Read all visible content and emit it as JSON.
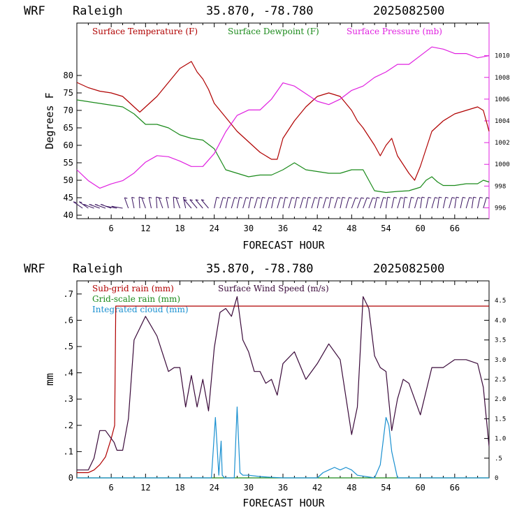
{
  "panels": [
    {
      "title": {
        "model": "WRF",
        "place": "Raleigh",
        "coords": "35.870, -78.780",
        "date": "2025082500"
      },
      "legend": [
        "Surface Temperature (F)",
        "Surface Dewpoint (F)",
        "Surface Pressure (mb)"
      ],
      "xlabel": "FORECAST HOUR",
      "ylabel": "Degrees F"
    },
    {
      "title": {
        "model": "WRF",
        "place": "Raleigh",
        "coords": "35.870, -78.780",
        "date": "2025082500"
      },
      "legend": [
        "Sub-grid rain (mm)",
        "Surface Wind Speed (m/s)",
        "Grid-scale rain (mm)",
        "Integrated cloud (mm)"
      ],
      "xlabel": "FORECAST HOUR",
      "ylabel": "mm"
    }
  ],
  "colors": {
    "temperature": "#b00000",
    "dewpoint": "#1a8a1a",
    "pressure": "#e020e0",
    "subgrid": "#b00000",
    "wind": "#3a0a3a",
    "cloud": "#1a90d0",
    "barbs": "#3a1460",
    "axis": "#000000"
  },
  "chart_data": [
    {
      "type": "line",
      "xlim": [
        0,
        72
      ],
      "ylim": [
        39,
        95
      ],
      "y2lim": [
        995,
        1013
      ],
      "x_ticks": [
        "6",
        "12",
        "18",
        "24",
        "30",
        "36",
        "42",
        "48",
        "54",
        "60",
        "66"
      ],
      "y_ticks": [
        "40",
        "45",
        "50",
        "55",
        "60",
        "65",
        "70",
        "75",
        "80"
      ],
      "y2_ticks": [
        "996",
        "998",
        "1000",
        "1002",
        "1004",
        "1006",
        "1008",
        "1010"
      ],
      "wind_barbs": true,
      "series": [
        {
          "name": "Surface Temperature (F)",
          "axis": "left",
          "x": [
            0,
            2,
            4,
            6,
            8,
            10,
            11,
            12,
            14,
            16,
            18,
            19,
            20,
            21,
            22,
            23,
            24,
            26,
            28,
            30,
            32,
            34,
            35,
            36,
            38,
            40,
            42,
            44,
            46,
            48,
            49,
            50,
            52,
            53,
            54,
            55,
            56,
            58,
            59,
            60,
            62,
            64,
            66,
            68,
            70,
            71,
            72
          ],
          "y": [
            78,
            76.5,
            75.5,
            75,
            74,
            71,
            69.5,
            71,
            74,
            78,
            82,
            83,
            84,
            81,
            79,
            76,
            72,
            68,
            64,
            61,
            58,
            56,
            56,
            62,
            67,
            71,
            74,
            75,
            74,
            70,
            67,
            65,
            60,
            57,
            60,
            62,
            57,
            52,
            50,
            54,
            64,
            67,
            69,
            70,
            71,
            70,
            64
          ]
        },
        {
          "name": "Surface Dewpoint (F)",
          "axis": "left",
          "x": [
            0,
            2,
            4,
            6,
            8,
            10,
            12,
            14,
            16,
            18,
            20,
            22,
            24,
            26,
            28,
            30,
            32,
            34,
            36,
            38,
            40,
            42,
            44,
            46,
            48,
            50,
            51,
            52,
            54,
            56,
            58,
            60,
            61,
            62,
            63,
            64,
            66,
            68,
            70,
            71,
            72
          ],
          "y": [
            73,
            72.5,
            72,
            71.5,
            71,
            69,
            66,
            66,
            65,
            63,
            62,
            61.5,
            59,
            53,
            52,
            51,
            51.5,
            51.5,
            53,
            55,
            53,
            52.5,
            52,
            52,
            53,
            53,
            50,
            47,
            46.5,
            46.8,
            47,
            48,
            50,
            51,
            49.5,
            48.5,
            48.5,
            49,
            49,
            50,
            49.5
          ]
        },
        {
          "name": "Surface Pressure (mb)",
          "axis": "right",
          "x": [
            0,
            2,
            4,
            6,
            8,
            10,
            12,
            14,
            16,
            18,
            20,
            22,
            24,
            26,
            28,
            30,
            32,
            34,
            36,
            38,
            40,
            42,
            44,
            46,
            48,
            50,
            52,
            54,
            56,
            58,
            60,
            62,
            64,
            66,
            68,
            70,
            72
          ],
          "y": [
            999.5,
            998.5,
            997.8,
            998.2,
            998.5,
            999.2,
            1000.2,
            1000.8,
            1000.7,
            1000.3,
            999.8,
            999.8,
            1001,
            1003,
            1004.5,
            1005,
            1005,
            1006,
            1007.5,
            1007.2,
            1006.5,
            1005.8,
            1005.5,
            1006,
            1006.8,
            1007.2,
            1008,
            1008.5,
            1009.2,
            1009.2,
            1010,
            1010.8,
            1010.6,
            1010.2,
            1010.2,
            1009.8,
            1010
          ]
        }
      ]
    },
    {
      "type": "line",
      "xlim": [
        0,
        72
      ],
      "ylim": [
        0,
        0.75
      ],
      "y2lim": [
        0,
        5
      ],
      "x_ticks": [
        "6",
        "12",
        "18",
        "24",
        "30",
        "36",
        "42",
        "48",
        "54",
        "60",
        "66"
      ],
      "y_ticks": [
        "0",
        ".1",
        ".2",
        ".3",
        ".4",
        ".5",
        ".6",
        ".7"
      ],
      "y2_ticks": [
        "0",
        ".5",
        "1.0",
        "1.5",
        "2.0",
        "2.5",
        "3.0",
        "3.5",
        "4.0",
        "4.5"
      ],
      "series": [
        {
          "name": "Sub-grid rain (mm)",
          "axis": "left",
          "x": [
            0,
            2,
            3,
            4,
            5,
            6,
            6.6,
            6.8,
            72
          ],
          "y": [
            0.02,
            0.02,
            0.03,
            0.05,
            0.08,
            0.15,
            0.2,
            0.654,
            0.654
          ]
        },
        {
          "name": "Surface Wind Speed (m/s)",
          "axis": "right",
          "x": [
            0,
            1,
            2,
            3,
            4,
            5,
            6,
            6.5,
            7,
            8,
            9,
            10,
            11,
            12,
            14,
            16,
            17,
            18,
            19,
            20,
            21,
            22,
            23,
            24,
            25,
            26,
            27,
            28,
            29,
            30,
            31,
            32,
            33,
            34,
            35,
            36,
            38,
            40,
            42,
            44,
            46,
            48,
            49,
            50,
            51,
            52,
            53,
            54,
            55,
            56,
            57,
            58,
            60,
            62,
            64,
            66,
            68,
            70,
            71,
            72
          ],
          "y": [
            0.2,
            0.2,
            0.2,
            0.5,
            1.2,
            1.2,
            1.0,
            0.9,
            0.7,
            0.7,
            1.5,
            3.5,
            3.8,
            4.1,
            3.6,
            2.7,
            2.8,
            2.8,
            1.8,
            2.6,
            1.8,
            2.5,
            1.7,
            3.3,
            4.2,
            4.3,
            4.1,
            4.6,
            3.5,
            3.2,
            2.7,
            2.7,
            2.4,
            2.5,
            2.1,
            2.9,
            3.2,
            2.5,
            2.9,
            3.4,
            3.0,
            1.1,
            1.8,
            4.6,
            4.3,
            3.1,
            2.8,
            2.7,
            1.2,
            2.0,
            2.5,
            2.4,
            1.6,
            2.8,
            2.8,
            3.0,
            3.0,
            2.9,
            2.3,
            0.8
          ]
        },
        {
          "name": "Grid-scale rain (mm)",
          "axis": "left",
          "x": [
            0,
            72
          ],
          "y": [
            0,
            0
          ]
        },
        {
          "name": "Integrated cloud (mm)",
          "axis": "left",
          "x": [
            0,
            23.5,
            24.2,
            24.8,
            25.2,
            25.4,
            25.8,
            26,
            27.5,
            28,
            28.5,
            29,
            30,
            32,
            34,
            36,
            42,
            43,
            44,
            45,
            46,
            47,
            48,
            49,
            52,
            53,
            54,
            54.5,
            55,
            56,
            72
          ],
          "y": [
            0,
            0,
            0.23,
            0.01,
            0.14,
            0.01,
            0,
            0,
            0,
            0.27,
            0.02,
            0.01,
            0.01,
            0.005,
            0.002,
            0,
            0,
            0.02,
            0.03,
            0.04,
            0.03,
            0.04,
            0.03,
            0.01,
            0,
            0.05,
            0.23,
            0.2,
            0.1,
            0,
            0
          ]
        }
      ]
    }
  ]
}
